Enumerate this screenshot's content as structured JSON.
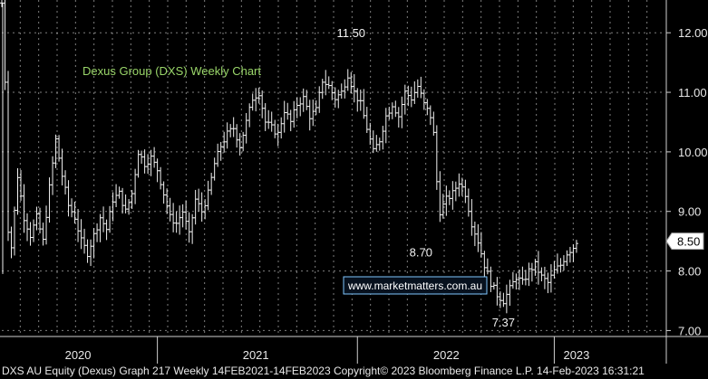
{
  "chart_data": {
    "type": "ohlc",
    "title": "Dexus Group (DXS) Weekly Chart",
    "watermark": "www.marketmatters.com.au",
    "y_axis_side": "right",
    "ylim": [
      6.9,
      12.55
    ],
    "y_ticks": [
      7.0,
      8.0,
      9.0,
      10.0,
      11.0,
      12.0
    ],
    "y_tick_labels": [
      "7.00",
      "8.00",
      "9.00",
      "10.00",
      "11.00",
      "12.00"
    ],
    "x_axis": {
      "unit": "week_index",
      "range": [
        0,
        209
      ],
      "labels": [
        {
          "text": "2020",
          "at": 24
        },
        {
          "text": "2021",
          "at": 80
        },
        {
          "text": "2022",
          "at": 140
        },
        {
          "text": "2023",
          "at": 181
        }
      ],
      "dividers": [
        49,
        112,
        174
      ]
    },
    "annotations": [
      {
        "text": "11.50",
        "x": 110,
        "y": 11.5
      },
      {
        "text": "8.70",
        "x": 136,
        "y": 8.7
      },
      {
        "text": "7.37",
        "x": 158,
        "y": 7.37
      }
    ],
    "last_price": {
      "value": 8.5,
      "label": "8.50"
    },
    "anchors": [
      [
        0,
        12.5
      ],
      [
        1,
        11.2
      ],
      [
        2,
        8.7
      ],
      [
        3,
        8.4
      ],
      [
        5,
        9.6
      ],
      [
        7,
        8.9
      ],
      [
        9,
        8.6
      ],
      [
        11,
        8.9
      ],
      [
        13,
        8.5
      ],
      [
        15,
        9.4
      ],
      [
        17,
        10.2
      ],
      [
        19,
        9.6
      ],
      [
        21,
        9.1
      ],
      [
        23,
        8.9
      ],
      [
        25,
        8.5
      ],
      [
        27,
        8.3
      ],
      [
        29,
        8.6
      ],
      [
        31,
        8.9
      ],
      [
        33,
        8.7
      ],
      [
        35,
        9.2
      ],
      [
        37,
        9.3
      ],
      [
        39,
        9.0
      ],
      [
        41,
        9.3
      ],
      [
        43,
        10.0
      ],
      [
        45,
        9.8
      ],
      [
        47,
        9.9
      ],
      [
        49,
        9.7
      ],
      [
        51,
        9.3
      ],
      [
        53,
        8.9
      ],
      [
        55,
        8.8
      ],
      [
        57,
        9.0
      ],
      [
        59,
        8.6
      ],
      [
        61,
        9.2
      ],
      [
        63,
        9.0
      ],
      [
        65,
        9.3
      ],
      [
        67,
        9.8
      ],
      [
        69,
        10.1
      ],
      [
        71,
        10.3
      ],
      [
        73,
        10.4
      ],
      [
        75,
        10.1
      ],
      [
        77,
        10.5
      ],
      [
        79,
        10.9
      ],
      [
        81,
        11.0
      ],
      [
        83,
        10.5
      ],
      [
        85,
        10.4
      ],
      [
        87,
        10.3
      ],
      [
        89,
        10.7
      ],
      [
        91,
        10.5
      ],
      [
        93,
        10.8
      ],
      [
        95,
        10.9
      ],
      [
        97,
        10.6
      ],
      [
        99,
        10.7
      ],
      [
        101,
        11.2
      ],
      [
        103,
        11.1
      ],
      [
        105,
        10.9
      ],
      [
        107,
        11.0
      ],
      [
        109,
        11.3
      ],
      [
        111,
        11.0
      ],
      [
        113,
        10.8
      ],
      [
        115,
        10.4
      ],
      [
        117,
        10.0
      ],
      [
        119,
        10.2
      ],
      [
        121,
        10.6
      ],
      [
        123,
        10.8
      ],
      [
        125,
        10.6
      ],
      [
        127,
        11.0
      ],
      [
        129,
        10.9
      ],
      [
        131,
        11.1
      ],
      [
        133,
        10.8
      ],
      [
        135,
        10.6
      ],
      [
        136,
        10.3
      ],
      [
        137,
        9.5
      ],
      [
        138,
        9.0
      ],
      [
        140,
        9.2
      ],
      [
        142,
        9.3
      ],
      [
        144,
        9.5
      ],
      [
        146,
        9.3
      ],
      [
        148,
        8.8
      ],
      [
        150,
        8.5
      ],
      [
        152,
        8.1
      ],
      [
        154,
        7.8
      ],
      [
        156,
        7.6
      ],
      [
        158,
        7.5
      ],
      [
        160,
        7.7
      ],
      [
        162,
        7.9
      ],
      [
        164,
        7.8
      ],
      [
        166,
        8.0
      ],
      [
        168,
        8.1
      ],
      [
        170,
        7.9
      ],
      [
        172,
        7.8
      ],
      [
        174,
        8.0
      ],
      [
        176,
        8.1
      ],
      [
        178,
        8.3
      ],
      [
        180,
        8.4
      ],
      [
        181,
        8.5
      ]
    ]
  },
  "footer": {
    "text": "DXS AU Equity (Dexus) Graph 217  Weekly 14FEB2021-14FEB2023  Copyright© 2023 Bloomberg Finance L.P.  14-Feb-2023 16:31:21"
  }
}
